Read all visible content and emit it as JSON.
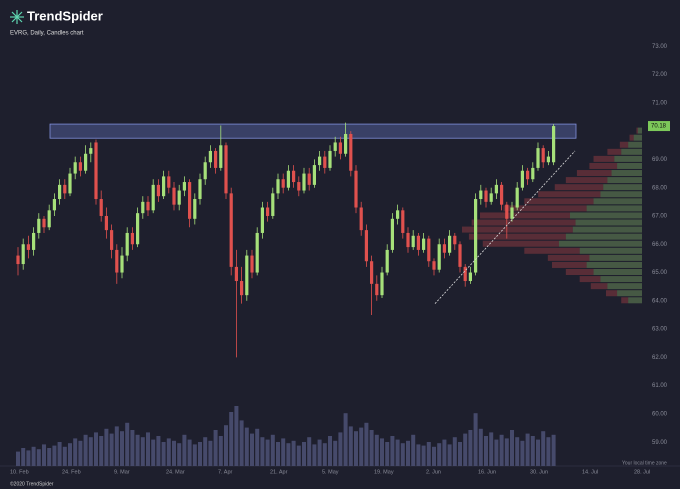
{
  "brand": "TrendSpider",
  "footer": "©2020 TrendSpider",
  "timezone_note": "Your local time zone",
  "chart_data": {
    "type": "candlestick",
    "title": "EVRG, Daily, Candles chart",
    "up_color": "#a6e07a",
    "down_color": "#e0514e",
    "volume_color": "#464a6b",
    "ylim": [
      58.3,
      73.4
    ],
    "yticks": [
      {
        "value": 59,
        "label": "59.00"
      },
      {
        "value": 60,
        "label": "60.00"
      },
      {
        "value": 61,
        "label": "61.00"
      },
      {
        "value": 62,
        "label": "62.00"
      },
      {
        "value": 63,
        "label": "63.00"
      },
      {
        "value": 64,
        "label": "64.00"
      },
      {
        "value": 65,
        "label": "65.00"
      },
      {
        "value": 66,
        "label": "66.00"
      },
      {
        "value": 67,
        "label": "67.00"
      },
      {
        "value": 68,
        "label": "68.00"
      },
      {
        "value": 69,
        "label": "69.00"
      },
      {
        "value": 71,
        "label": "71.00"
      },
      {
        "value": 72,
        "label": "72.00"
      },
      {
        "value": 73,
        "label": "73.00"
      }
    ],
    "categories": [
      "10. Feb",
      null,
      null,
      null,
      null,
      null,
      null,
      null,
      null,
      null,
      "24. Feb",
      null,
      null,
      null,
      null,
      null,
      null,
      null,
      null,
      null,
      "9. Mar",
      null,
      null,
      null,
      null,
      null,
      null,
      null,
      null,
      null,
      "24. Mar",
      null,
      null,
      null,
      null,
      null,
      null,
      null,
      null,
      null,
      "7. Apr",
      null,
      null,
      null,
      null,
      null,
      null,
      null,
      null,
      null,
      "21. Apr",
      null,
      null,
      null,
      null,
      null,
      null,
      null,
      null,
      null,
      "5. May",
      null,
      null,
      null,
      null,
      null,
      null,
      null,
      null,
      null,
      "19. May",
      null,
      null,
      null,
      null,
      null,
      null,
      null,
      null,
      null,
      "2. Jun",
      null,
      null,
      null,
      null,
      null,
      null,
      null,
      null,
      null,
      "16. Jun",
      null,
      null,
      null,
      null,
      null,
      null,
      null,
      null,
      null,
      "30. Jun",
      null,
      null,
      null,
      null,
      null,
      null,
      null,
      null,
      null,
      "14. Jul",
      null,
      null,
      null,
      null,
      null,
      null,
      null,
      null,
      null,
      "28. Jul"
    ],
    "ohlc": [
      [
        65.6,
        65.9,
        64.9,
        65.3
      ],
      [
        65.3,
        66.2,
        65.1,
        66.0
      ],
      [
        66.0,
        66.3,
        65.5,
        65.8
      ],
      [
        65.8,
        66.6,
        65.6,
        66.4
      ],
      [
        66.4,
        67.1,
        66.2,
        66.9
      ],
      [
        66.9,
        67.0,
        66.4,
        66.6
      ],
      [
        66.6,
        67.4,
        66.5,
        67.2
      ],
      [
        67.2,
        67.8,
        67.0,
        67.6
      ],
      [
        67.6,
        68.3,
        67.4,
        68.1
      ],
      [
        68.1,
        68.3,
        67.6,
        67.8
      ],
      [
        67.8,
        68.7,
        67.7,
        68.5
      ],
      [
        68.5,
        69.1,
        68.3,
        68.9
      ],
      [
        68.9,
        69.1,
        68.4,
        68.6
      ],
      [
        68.6,
        69.5,
        68.5,
        69.2
      ],
      [
        69.2,
        69.6,
        68.9,
        69.4
      ],
      [
        69.6,
        69.7,
        67.4,
        67.6
      ],
      [
        67.6,
        67.9,
        66.8,
        67.0
      ],
      [
        67.0,
        67.3,
        66.2,
        66.5
      ],
      [
        66.5,
        66.7,
        65.5,
        65.8
      ],
      [
        65.8,
        66.0,
        64.6,
        65.0
      ],
      [
        65.0,
        65.9,
        64.8,
        65.6
      ],
      [
        65.6,
        66.6,
        65.4,
        66.4
      ],
      [
        66.4,
        66.6,
        65.8,
        66.0
      ],
      [
        66.0,
        67.3,
        65.9,
        67.1
      ],
      [
        67.1,
        67.7,
        66.9,
        67.5
      ],
      [
        67.5,
        67.7,
        67.0,
        67.2
      ],
      [
        67.2,
        68.3,
        67.1,
        68.1
      ],
      [
        68.1,
        68.3,
        67.5,
        67.7
      ],
      [
        67.7,
        68.6,
        67.6,
        68.4
      ],
      [
        68.4,
        68.6,
        67.8,
        68.0
      ],
      [
        68.0,
        68.2,
        67.2,
        67.4
      ],
      [
        67.4,
        68.1,
        67.2,
        67.9
      ],
      [
        67.9,
        68.4,
        67.7,
        68.2
      ],
      [
        68.2,
        68.3,
        66.6,
        66.9
      ],
      [
        66.9,
        67.8,
        66.7,
        67.6
      ],
      [
        67.6,
        68.5,
        67.4,
        68.3
      ],
      [
        68.3,
        69.1,
        68.1,
        68.9
      ],
      [
        68.9,
        69.5,
        68.7,
        69.3
      ],
      [
        69.3,
        69.4,
        68.5,
        68.7
      ],
      [
        68.7,
        70.2,
        68.6,
        69.5
      ],
      [
        69.5,
        69.6,
        67.6,
        67.8
      ],
      [
        67.8,
        68.0,
        64.9,
        65.2
      ],
      [
        65.2,
        65.8,
        62.0,
        64.7
      ],
      [
        64.7,
        65.2,
        63.9,
        64.2
      ],
      [
        64.2,
        65.8,
        64.0,
        65.6
      ],
      [
        65.6,
        65.8,
        64.8,
        65.0
      ],
      [
        65.0,
        66.6,
        64.9,
        66.4
      ],
      [
        66.4,
        67.5,
        66.2,
        67.3
      ],
      [
        67.3,
        67.5,
        66.8,
        67.0
      ],
      [
        67.0,
        68.0,
        66.9,
        67.8
      ],
      [
        67.8,
        68.5,
        67.6,
        68.3
      ],
      [
        68.3,
        68.5,
        67.8,
        68.0
      ],
      [
        68.0,
        68.8,
        67.9,
        68.6
      ],
      [
        68.6,
        68.8,
        68.0,
        68.2
      ],
      [
        68.2,
        68.4,
        67.7,
        67.9
      ],
      [
        67.9,
        68.7,
        67.8,
        68.5
      ],
      [
        68.5,
        68.7,
        67.9,
        68.1
      ],
      [
        68.1,
        69.0,
        68.0,
        68.8
      ],
      [
        68.8,
        69.3,
        68.6,
        69.1
      ],
      [
        69.1,
        69.3,
        68.5,
        68.7
      ],
      [
        68.7,
        69.5,
        68.6,
        69.3
      ],
      [
        69.3,
        69.8,
        69.1,
        69.6
      ],
      [
        69.6,
        69.8,
        69.0,
        69.2
      ],
      [
        69.2,
        70.3,
        69.1,
        69.9
      ],
      [
        69.9,
        70.0,
        68.4,
        68.6
      ],
      [
        68.6,
        68.8,
        67.1,
        67.3
      ],
      [
        67.3,
        67.5,
        66.3,
        66.5
      ],
      [
        66.5,
        66.7,
        65.2,
        65.4
      ],
      [
        65.4,
        65.6,
        63.5,
        64.6
      ],
      [
        64.6,
        64.9,
        64.0,
        64.2
      ],
      [
        64.2,
        65.2,
        64.1,
        65.0
      ],
      [
        65.0,
        66.0,
        64.9,
        65.8
      ],
      [
        65.8,
        67.1,
        65.7,
        66.9
      ],
      [
        66.9,
        67.4,
        66.7,
        67.2
      ],
      [
        67.2,
        67.3,
        66.2,
        66.4
      ],
      [
        66.4,
        66.6,
        65.7,
        65.9
      ],
      [
        65.9,
        66.5,
        65.8,
        66.3
      ],
      [
        66.3,
        66.4,
        65.6,
        65.8
      ],
      [
        65.8,
        66.4,
        65.7,
        66.2
      ],
      [
        66.2,
        66.3,
        65.2,
        65.4
      ],
      [
        65.4,
        65.5,
        64.9,
        65.1
      ],
      [
        65.1,
        66.2,
        65.0,
        66.0
      ],
      [
        66.0,
        66.2,
        65.5,
        65.7
      ],
      [
        65.7,
        66.5,
        65.6,
        66.3
      ],
      [
        66.3,
        66.4,
        65.8,
        66.0
      ],
      [
        66.0,
        66.1,
        65.0,
        65.2
      ],
      [
        65.2,
        65.3,
        64.5,
        64.7
      ],
      [
        64.7,
        65.2,
        64.6,
        65.0
      ],
      [
        65.0,
        67.8,
        64.9,
        67.6
      ],
      [
        67.6,
        68.1,
        67.4,
        67.9
      ],
      [
        67.9,
        68.0,
        67.3,
        67.5
      ],
      [
        67.5,
        68.0,
        67.4,
        67.8
      ],
      [
        67.8,
        68.3,
        67.6,
        68.1
      ],
      [
        68.1,
        68.2,
        67.2,
        67.4
      ],
      [
        67.4,
        67.5,
        66.2,
        66.9
      ],
      [
        66.9,
        67.5,
        66.8,
        67.3
      ],
      [
        67.3,
        68.2,
        67.2,
        68.0
      ],
      [
        68.0,
        68.8,
        67.9,
        68.6
      ],
      [
        68.6,
        68.7,
        68.1,
        68.3
      ],
      [
        68.3,
        68.9,
        68.2,
        68.7
      ],
      [
        68.7,
        69.6,
        68.6,
        69.4
      ],
      [
        69.4,
        69.5,
        68.7,
        68.9
      ],
      [
        68.9,
        69.3,
        68.8,
        69.1
      ],
      [
        68.9,
        70.25,
        68.8,
        70.18
      ],
      null,
      null,
      null,
      null,
      null,
      null,
      null,
      null,
      null,
      null,
      null,
      null,
      null,
      null,
      null,
      null,
      null
    ],
    "volume": [
      1.2,
      1.5,
      1.3,
      1.6,
      1.4,
      1.8,
      1.5,
      1.7,
      2.0,
      1.6,
      1.9,
      2.3,
      2.1,
      2.6,
      2.4,
      2.8,
      2.5,
      3.1,
      2.7,
      3.3,
      2.9,
      3.6,
      3.0,
      2.6,
      2.4,
      2.8,
      2.2,
      2.5,
      2.0,
      2.3,
      2.1,
      1.9,
      2.6,
      2.2,
      1.8,
      2.0,
      2.4,
      2.1,
      3.0,
      2.5,
      3.4,
      4.5,
      5.0,
      3.8,
      3.2,
      2.7,
      3.1,
      2.4,
      2.2,
      2.6,
      2.0,
      2.3,
      1.9,
      2.1,
      1.7,
      2.0,
      2.4,
      1.8,
      2.2,
      1.9,
      2.5,
      2.1,
      2.8,
      4.4,
      3.3,
      2.9,
      3.2,
      3.6,
      3.0,
      2.6,
      2.3,
      2.0,
      2.5,
      2.2,
      1.9,
      2.1,
      2.6,
      1.8,
      1.7,
      2.0,
      1.6,
      1.9,
      2.2,
      1.8,
      2.4,
      2.0,
      2.7,
      3.0,
      4.4,
      3.1,
      2.5,
      2.8,
      2.2,
      2.6,
      2.3,
      3.0,
      2.4,
      2.1,
      2.7,
      2.5,
      2.2,
      2.9,
      2.4,
      2.6,
      null,
      null,
      null,
      null,
      null,
      null,
      null,
      null,
      null,
      null,
      null,
      null,
      null,
      null,
      null,
      null,
      null
    ],
    "volume_profile": {
      "prices": [
        64.0,
        64.25,
        64.5,
        64.75,
        65.0,
        65.25,
        65.5,
        65.75,
        66.0,
        66.25,
        66.5,
        66.75,
        67.0,
        67.25,
        67.5,
        67.75,
        68.0,
        68.25,
        68.5,
        68.75,
        69.0,
        69.25,
        69.5,
        69.75,
        70.0
      ],
      "up": [
        10,
        18,
        25,
        30,
        35,
        40,
        38,
        45,
        60,
        55,
        50,
        48,
        52,
        40,
        35,
        30,
        28,
        25,
        22,
        18,
        20,
        15,
        10,
        6,
        3
      ],
      "down": [
        5,
        8,
        12,
        15,
        20,
        25,
        30,
        40,
        55,
        70,
        80,
        75,
        65,
        60,
        50,
        45,
        35,
        30,
        25,
        20,
        15,
        10,
        6,
        3,
        1
      ]
    },
    "zone": [
      69.75,
      70.25
    ],
    "trendline": [
      63.9,
      69.3
    ]
  }
}
